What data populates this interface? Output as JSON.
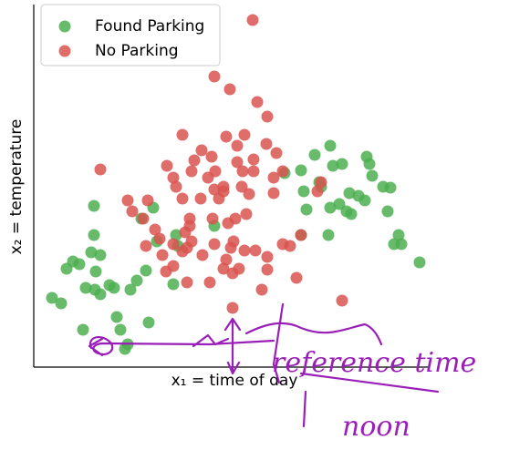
{
  "chart_data": {
    "type": "scatter",
    "x_label": "x₁ = time of day",
    "y_label": "x₂ = temperature",
    "xlim": [
      0,
      433
    ],
    "ylim": [
      0,
      398
    ],
    "legend": "upper left",
    "annotations": [
      "reference time",
      "noon"
    ],
    "series": [
      {
        "name": "Found Parking",
        "color": "#4caf50",
        "x": [
          20,
          30,
          36,
          43,
          50,
          63,
          73,
          66,
          68,
          57,
          67,
          73,
          83,
          88,
          66,
          54,
          91,
          95,
          103,
          100,
          126,
          106,
          113,
          123,
          135,
          131,
          118,
          153,
          158,
          156,
          198,
          293,
          308,
          325,
          328,
          338,
          315,
          313,
          296,
          293,
          299,
          325,
          335,
          343,
          348,
          346,
          356,
          363,
          365,
          368,
          371,
          383,
          391,
          388,
          395,
          400,
          403,
          423,
          323,
          275
        ],
        "values": [
          76,
          70,
          108,
          116,
          113,
          126,
          123,
          145,
          105,
          87,
          85,
          80,
          90,
          87,
          177,
          41,
          55,
          41,
          25,
          20,
          49,
          85,
          95,
          106,
          138,
          175,
          163,
          91,
          133,
          145,
          155,
          216,
          233,
          243,
          221,
          223,
          198,
          203,
          193,
          145,
          173,
          175,
          179,
          171,
          168,
          191,
          188,
          183,
          231,
          223,
          210,
          198,
          197,
          171,
          135,
          145,
          135,
          115,
          145,
          213
        ]
      },
      {
        "name": "No Parking",
        "color": "#d9534f",
        "x": [
          240,
          198,
          215,
          245,
          256,
          163,
          211,
          231,
          255,
          73,
          103,
          108,
          120,
          125,
          133,
          138,
          123,
          141,
          153,
          145,
          153,
          163,
          168,
          193,
          208,
          211,
          225,
          218,
          243,
          256,
          256,
          273,
          281,
          293,
          288,
          250,
          218,
          338,
          146,
          153,
          156,
          173,
          176,
          184,
          195,
          199,
          208,
          223,
          229,
          241,
          228,
          236,
          233,
          221,
          213,
          196,
          203,
          208,
          198,
          183,
          171,
          171,
          166,
          173,
          168,
          185,
          198,
          216,
          231,
          219,
          263,
          263,
          273,
          311,
          315,
          266,
          241,
          223,
          191,
          163
        ],
        "values": [
          381,
          319,
          305,
          291,
          275,
          255,
          253,
          255,
          245,
          217,
          183,
          171,
          163,
          183,
          151,
          141,
          133,
          123,
          111,
          105,
          135,
          127,
          93,
          93,
          108,
          118,
          108,
          103,
          128,
          121,
          107,
          135,
          133,
          145,
          98,
          85,
          65,
          73,
          221,
          208,
          198,
          215,
          227,
          238,
          231,
          215,
          198,
          243,
          215,
          215,
          198,
          190,
          168,
          163,
          158,
          163,
          185,
          193,
          195,
          185,
          163,
          155,
          148,
          138,
          131,
          123,
          135,
          131,
          128,
          138,
          208,
          191,
          215,
          193,
          203,
          235,
          228,
          225,
          208,
          185
        ]
      }
    ]
  }
}
